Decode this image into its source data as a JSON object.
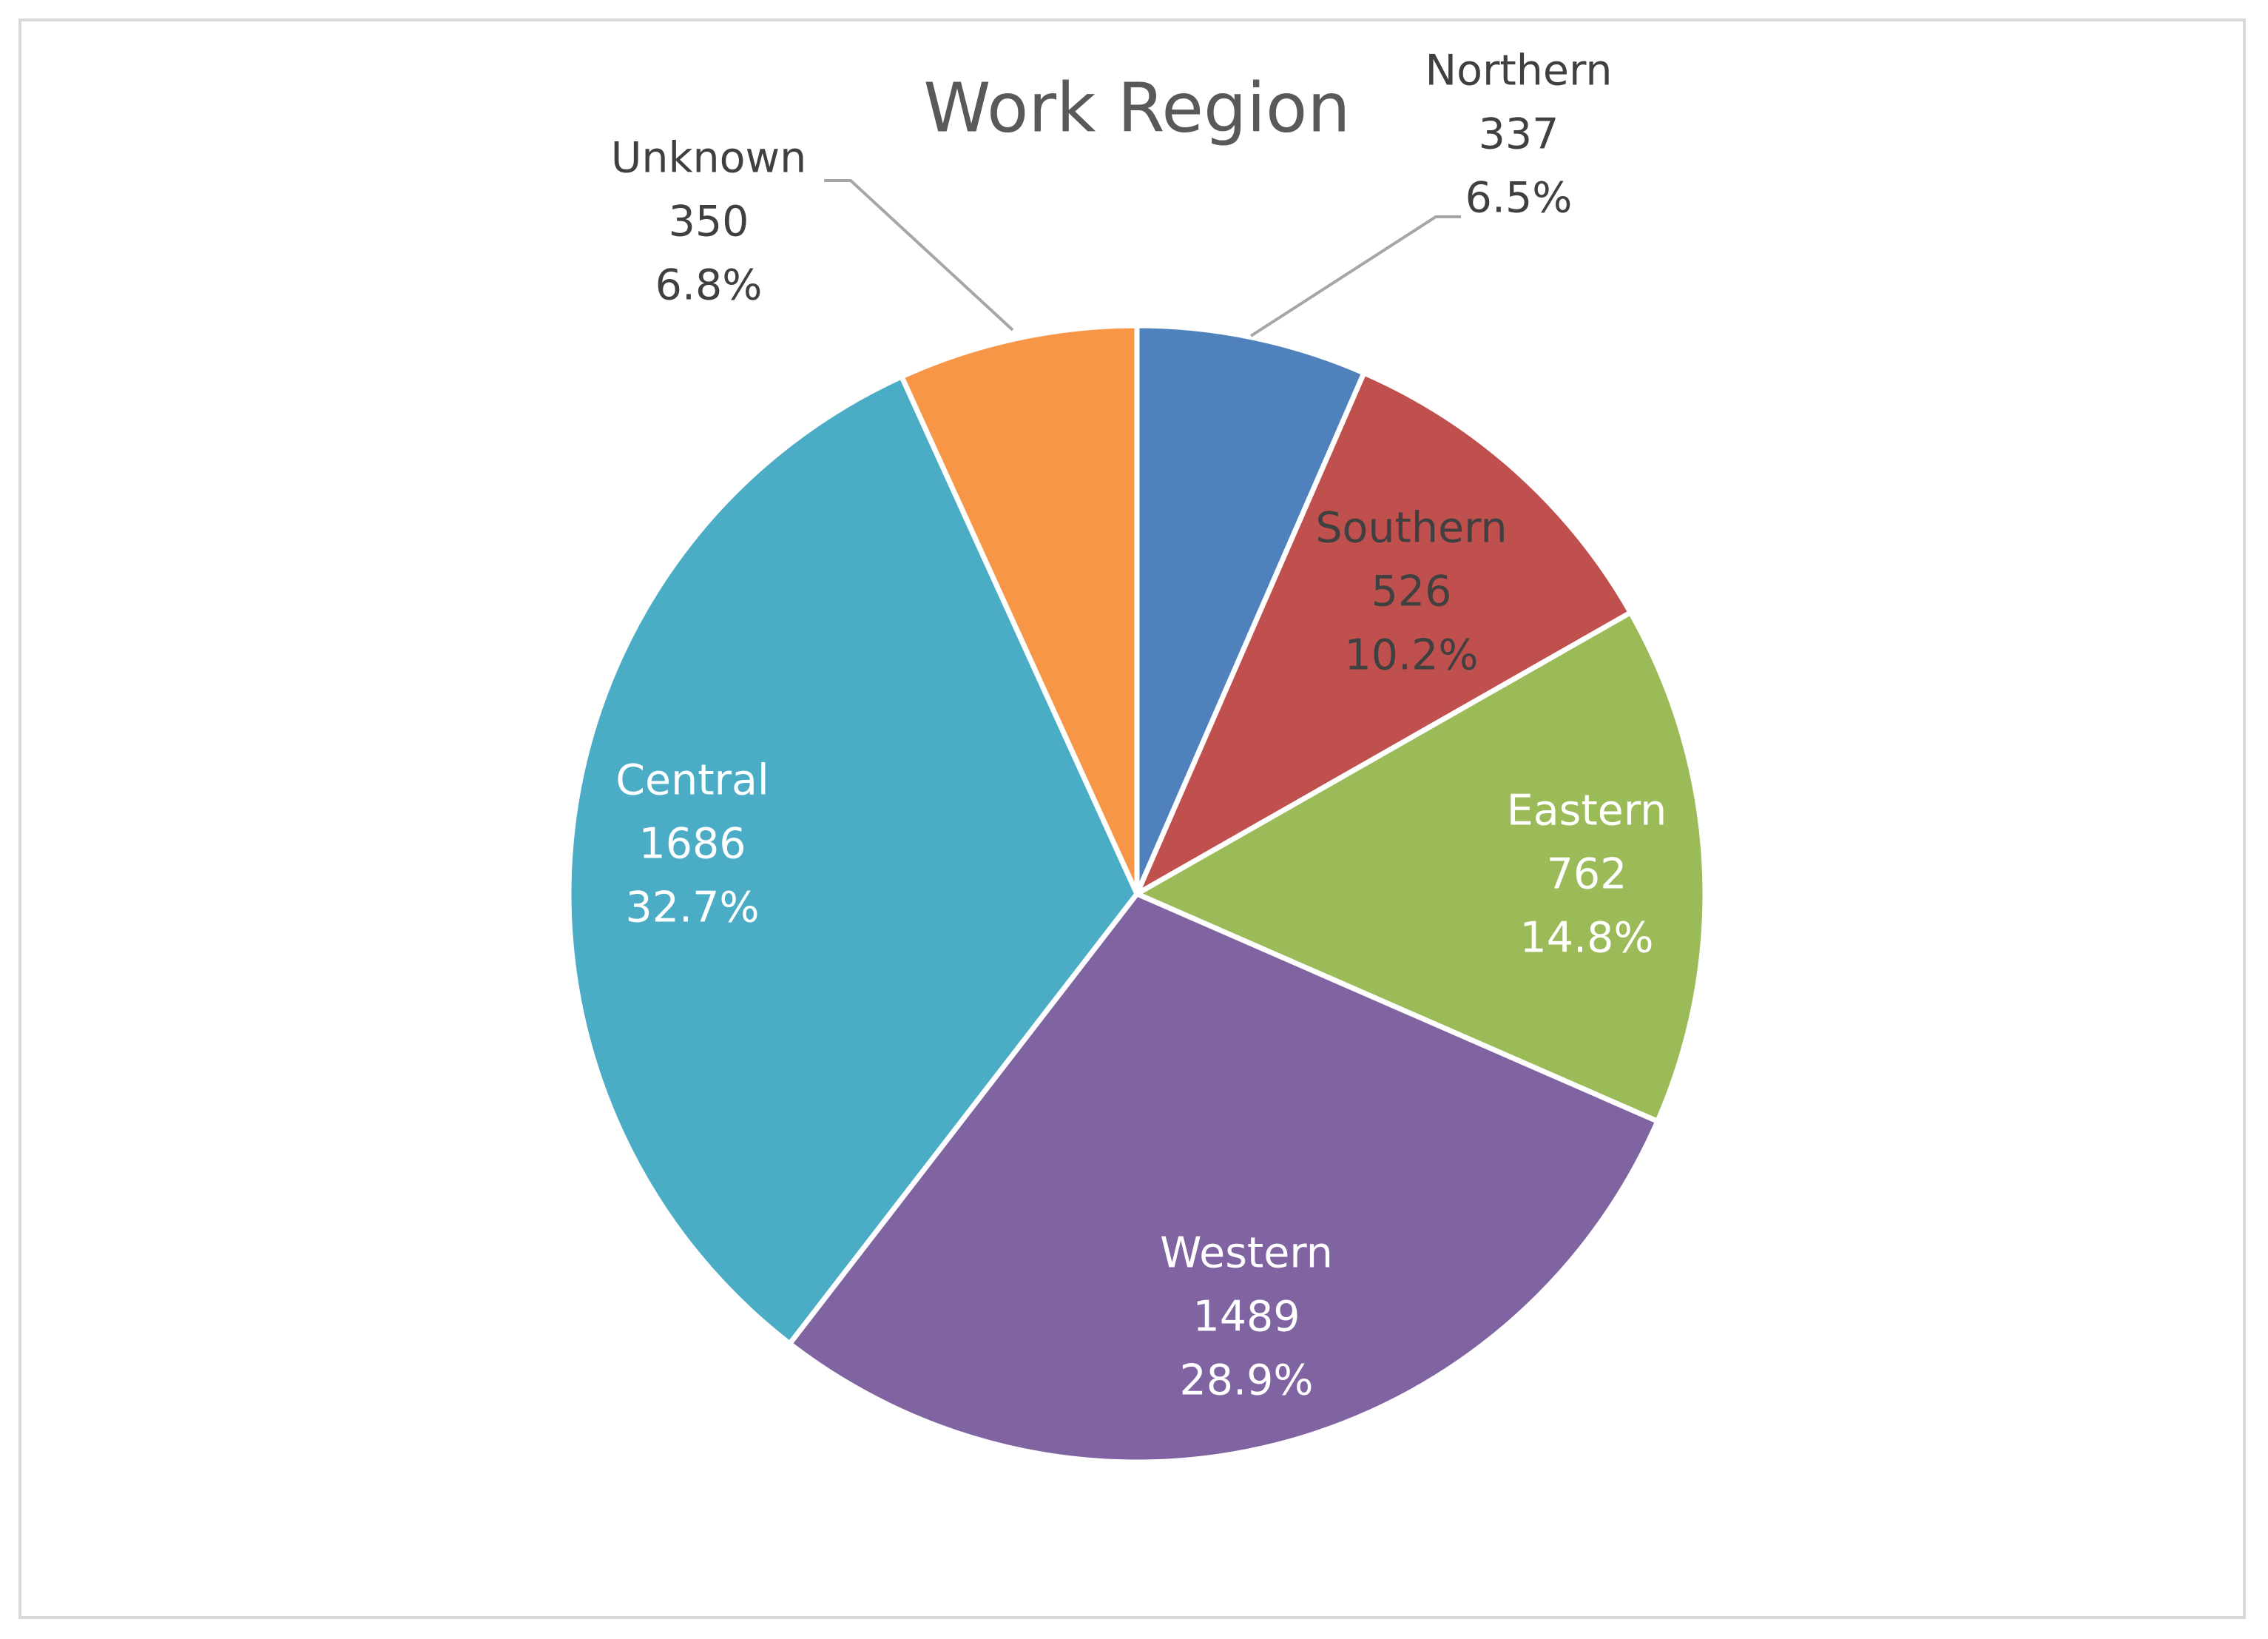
{
  "chart_data": {
    "type": "pie",
    "title": "Work Region",
    "categories": [
      "Northern",
      "Southern",
      "Eastern",
      "Western",
      "Central",
      "Unknown"
    ],
    "values": [
      337,
      526,
      762,
      1489,
      1686,
      350
    ],
    "percent_labels": [
      "6.5%",
      "10.2%",
      "14.8%",
      "28.9%",
      "32.7%",
      "6.8%"
    ],
    "colors": [
      "#4f81bd",
      "#c0504d",
      "#9bbb59",
      "#8064a2",
      "#4bacc6",
      "#f79646"
    ]
  }
}
